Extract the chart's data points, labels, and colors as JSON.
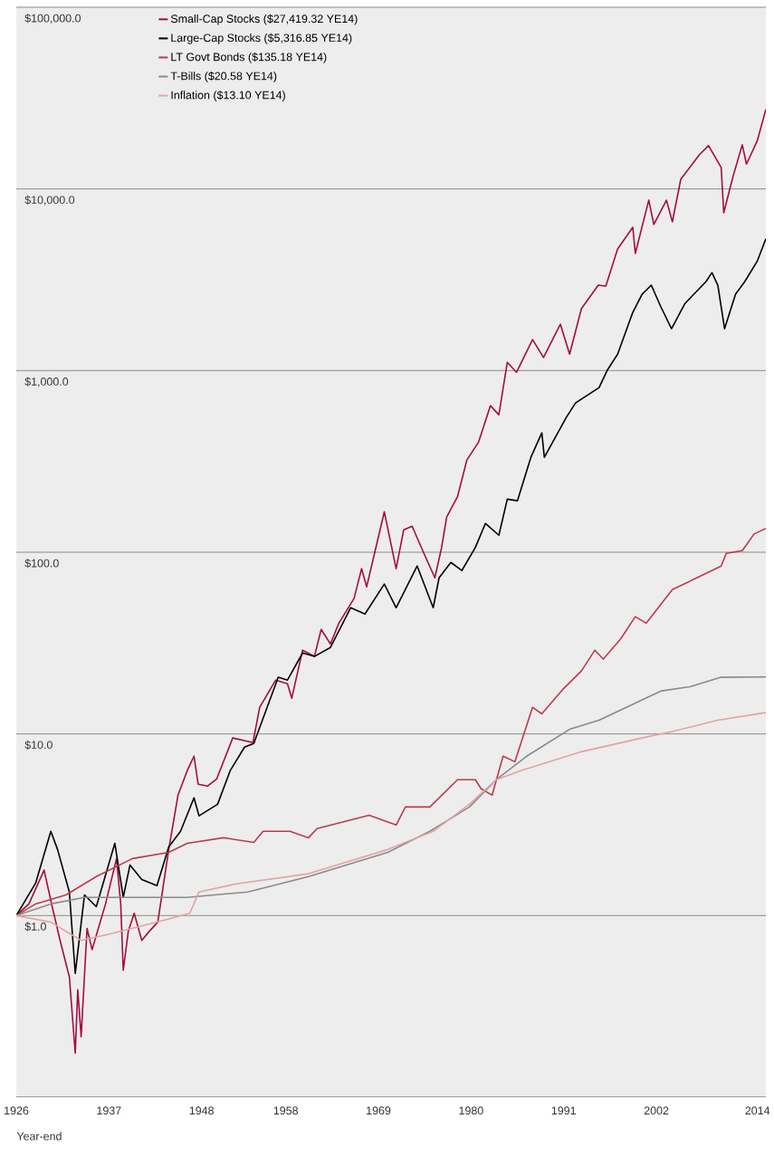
{
  "chart_data": {
    "type": "line",
    "xlabel": "Year-end",
    "log": "y",
    "grid": "y",
    "legend": "top left",
    "xlim": [
      1926,
      2015
    ],
    "xticks": [
      1926,
      1937,
      1948,
      1958,
      1969,
      1980,
      1991,
      2002,
      2014
    ],
    "ylim": [
      0.1,
      100000
    ],
    "yticks": [
      {
        "value": 1,
        "label": "$1.0"
      },
      {
        "value": 10,
        "label": "$10.0"
      },
      {
        "value": 100,
        "label": "$100.0"
      },
      {
        "value": 1000,
        "label": "$1,000.0"
      },
      {
        "value": 10000,
        "label": "$10,000.0"
      },
      {
        "value": 100000,
        "label": "$100,000.0"
      }
    ],
    "series": [
      {
        "name": "Small-Cap Stocks ($27,419.32 YE14)",
        "color": "#a50d3c",
        "x": [
          1926,
          1927.5,
          1929.3,
          1930.3,
          1931.2,
          1932.3,
          1933.0,
          1933.3,
          1933.7,
          1934.4,
          1935.0,
          1936.6,
          1937.9,
          1938.4,
          1938.7,
          1939.3,
          1940.0,
          1940.9,
          1941.8,
          1942.8,
          1944.1,
          1945.2,
          1946.3,
          1947.1,
          1947.6,
          1948.7,
          1949.8,
          1951.7,
          1954.1,
          1954.9,
          1956.8,
          1958.2,
          1958.7,
          1960.0,
          1961.4,
          1962.2,
          1963.3,
          1964.3,
          1966.1,
          1967.0,
          1967.6,
          1969.7,
          1971.1,
          1972.0,
          1973.0,
          1974.4,
          1975.7,
          1976.5,
          1977.1,
          1978.4,
          1979.5,
          1980.9,
          1982.3,
          1983.3,
          1984.3,
          1985.4,
          1987.3,
          1988.6,
          1990.6,
          1991.7,
          1993.1,
          1995.1,
          1996.0,
          1997.4,
          1999.2,
          1999.5,
          2001.1,
          2001.7,
          2003.2,
          2003.9,
          2004.9,
          2007.1,
          2008.2,
          2009.7,
          2010.0,
          2011.1,
          2012.2,
          2012.7,
          2014.0,
          2015
        ],
        "values": [
          1.0,
          1.16,
          1.78,
          1.1,
          0.73,
          0.46,
          0.175,
          0.39,
          0.215,
          0.85,
          0.65,
          1.16,
          2.06,
          1.16,
          0.5,
          0.82,
          1.03,
          0.73,
          0.82,
          0.92,
          2.31,
          4.6,
          6.28,
          7.54,
          5.28,
          5.16,
          5.66,
          9.5,
          8.96,
          14.0,
          19.8,
          18.9,
          15.7,
          28.9,
          26.7,
          37.6,
          31.3,
          40.7,
          55.6,
          81.2,
          64.5,
          167,
          81.2,
          133,
          139,
          98.6,
          72.3,
          106,
          156,
          203,
          322,
          405,
          641,
          571,
          1110,
          979,
          1480,
          1180,
          1800,
          1230,
          2190,
          2950,
          2920,
          4670,
          6150,
          4410,
          8670,
          6370,
          8670,
          6590,
          11300,
          15400,
          17300,
          13100,
          7390,
          11700,
          17500,
          13700,
          18500,
          27419.32
        ]
      },
      {
        "name": "Large-Cap Stocks ($5,316.85 YE14)",
        "color": "#000000",
        "x": [
          1926,
          1928.3,
          1930.1,
          1930.9,
          1932.3,
          1933.0,
          1934.1,
          1935.5,
          1937.7,
          1938.7,
          1939.5,
          1940.9,
          1942.7,
          1944.1,
          1945.5,
          1947.1,
          1947.7,
          1949.9,
          1951.4,
          1953.1,
          1954.2,
          1957.1,
          1958.2,
          1960.0,
          1961.4,
          1963.3,
          1965.7,
          1967.4,
          1969.7,
          1971.1,
          1973.6,
          1975.5,
          1976.2,
          1977.6,
          1978.9,
          1980.5,
          1981.7,
          1983.3,
          1984.3,
          1985.5,
          1987.1,
          1988.4,
          1988.7,
          1991.3,
          1992.4,
          1995.2,
          1996.2,
          1997.4,
          1999.2,
          2000.3,
          2001.4,
          2002.5,
          2003.8,
          2005.4,
          2007.9,
          2008.6,
          2009.3,
          2010.1,
          2011.4,
          2012.5,
          2014.0,
          2015
        ],
        "values": [
          1.0,
          1.51,
          2.91,
          2.31,
          1.35,
          0.48,
          1.3,
          1.12,
          2.5,
          1.26,
          1.9,
          1.58,
          1.46,
          2.39,
          2.91,
          4.45,
          3.54,
          4.1,
          6.28,
          8.46,
          8.85,
          20.5,
          19.8,
          27.9,
          26.7,
          29.9,
          49.5,
          45.7,
          66.8,
          49.5,
          84.0,
          49.5,
          72.3,
          87.9,
          79.3,
          106,
          144,
          124,
          196,
          192,
          333,
          454,
          333,
          552,
          663,
          806,
          1010,
          1230,
          2090,
          2630,
          2950,
          2260,
          1700,
          2340,
          3090,
          3460,
          2950,
          1700,
          2630,
          3090,
          4020,
          5316.85
        ]
      },
      {
        "name": "LT Govt Bonds ($135.18 YE14)",
        "color": "#bb3b4b",
        "x": [
          1926,
          1928.3,
          1931.9,
          1935.5,
          1939.8,
          1944.1,
          1946.3,
          1950.6,
          1954.2,
          1955.3,
          1958.5,
          1960.7,
          1961.7,
          1967.9,
          1971.1,
          1972.2,
          1975.1,
          1978.4,
          1980.5,
          1981.2,
          1982.5,
          1983.8,
          1985.2,
          1987.3,
          1988.4,
          1990.9,
          1993.1,
          1994.7,
          1995.7,
          1997.8,
          1999.5,
          2000.8,
          2003.9,
          2006.8,
          2009.7,
          2010.3,
          2012.2,
          2013.6,
          2015
        ],
        "values": [
          1.0,
          1.16,
          1.3,
          1.64,
          2.06,
          2.23,
          2.5,
          2.68,
          2.53,
          2.91,
          2.91,
          2.68,
          3.01,
          3.57,
          3.15,
          3.96,
          3.96,
          5.6,
          5.6,
          4.99,
          4.6,
          7.54,
          7.03,
          14.0,
          12.9,
          17.6,
          22.2,
          28.9,
          25.8,
          33.5,
          44.2,
          40.7,
          62.3,
          72.3,
          84.0,
          98.6,
          102,
          126,
          135.18
        ]
      },
      {
        "name": "T-Bills ($20.58 YE14)",
        "color": "#8a8a8a",
        "x": [
          1926,
          1930.1,
          1934.1,
          1946.3,
          1953.5,
          1960.7,
          1970.1,
          1975.1,
          1979.8,
          1983.0,
          1986.6,
          1991.7,
          1995.2,
          2002.5,
          2006.0,
          2009.7,
          2015
        ],
        "values": [
          1.0,
          1.16,
          1.26,
          1.26,
          1.35,
          1.64,
          2.23,
          2.91,
          3.96,
          5.6,
          7.54,
          10.6,
          11.9,
          17.2,
          18.2,
          20.5,
          20.58
        ]
      },
      {
        "name": "Inflation ($13.10 YE14)",
        "color": "#e3a3a3",
        "x": [
          1926,
          1930.1,
          1933.7,
          1937.3,
          1942.7,
          1946.6,
          1947.7,
          1952.0,
          1960.7,
          1970.1,
          1975.5,
          1979.8,
          1983.0,
          1985.9,
          1993.1,
          2000.3,
          2003.9,
          2009.3,
          2015
        ],
        "values": [
          1.0,
          0.92,
          0.73,
          0.795,
          0.92,
          1.03,
          1.35,
          1.49,
          1.7,
          2.31,
          2.91,
          4.1,
          5.6,
          6.28,
          7.98,
          9.5,
          10.3,
          11.9,
          13.1
        ]
      }
    ]
  }
}
